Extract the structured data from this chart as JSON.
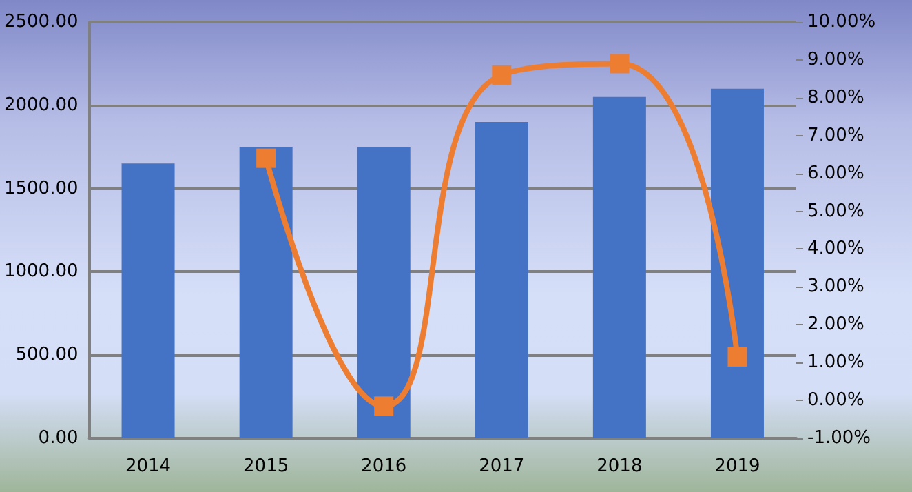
{
  "chart_data": {
    "type": "bar",
    "categories": [
      "2014",
      "2015",
      "2016",
      "2017",
      "2018",
      "2019"
    ],
    "series": [
      {
        "color": "#4472c4",
        "values": [
          1650,
          1750,
          1750,
          1900,
          2050,
          2100
        ]
      },
      {
        "type": "line",
        "axis": "y2",
        "color": "#ed7d31",
        "values": [
          null,
          6.4,
          -0.15,
          8.6,
          8.9,
          1.15
        ]
      }
    ],
    "ylim": [
      0,
      2500
    ],
    "yticks": [
      {
        "value": 0,
        "label": "0.00"
      },
      {
        "value": 500,
        "label": "500.00"
      },
      {
        "value": 1000,
        "label": "1000.00"
      },
      {
        "value": 1500,
        "label": "1500.00"
      },
      {
        "value": 2000,
        "label": "2000.00"
      },
      {
        "value": 2500,
        "label": "2500.00"
      }
    ],
    "y2lim": [
      -1,
      10
    ],
    "y2ticks": [
      {
        "value": -1,
        "label": "-1.00%"
      },
      {
        "value": 0,
        "label": "0.00%"
      },
      {
        "value": 1,
        "label": "1.00%"
      },
      {
        "value": 2,
        "label": "2.00%"
      },
      {
        "value": 3,
        "label": "3.00%"
      },
      {
        "value": 4,
        "label": "4.00%"
      },
      {
        "value": 5,
        "label": "5.00%"
      },
      {
        "value": 6,
        "label": "6.00%"
      },
      {
        "value": 7,
        "label": "7.00%"
      },
      {
        "value": 8,
        "label": "8.00%"
      },
      {
        "value": 9,
        "label": "9.00%"
      },
      {
        "value": 10,
        "label": "10.00%"
      }
    ],
    "grid": "y",
    "marker": "square",
    "line_style": "solid"
  }
}
